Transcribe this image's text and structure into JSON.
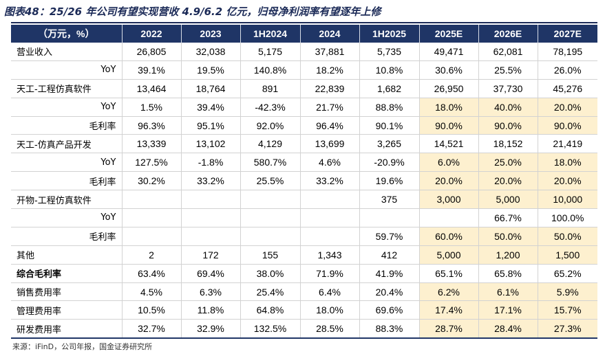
{
  "title": "图表48：25/26 年公司有望实现营收 4.9/6.2 亿元，归母净利润率有望逐年上修",
  "source": "来源：iFinD，公司年报，国金证券研究所",
  "highlight_color": "#fdf0cf",
  "header_color": "#1f3566",
  "columns": [
    "（万元，%）",
    "2022",
    "2023",
    "1H2024",
    "2024",
    "1H2025",
    "2025E",
    "2026E",
    "2027E"
  ],
  "rows": [
    {
      "label": "营业收入",
      "values": [
        "26,805",
        "32,038",
        "5,175",
        "37,881",
        "5,735",
        "49,471",
        "62,081",
        "78,195"
      ],
      "highlight": false
    },
    {
      "label": "YoY",
      "values": [
        "39.1%",
        "19.5%",
        "140.8%",
        "18.2%",
        "10.8%",
        "30.6%",
        "25.5%",
        "26.0%"
      ],
      "highlight": false
    },
    {
      "label": "天工-工程仿真软件",
      "values": [
        "13,464",
        "18,764",
        "891",
        "22,839",
        "1,682",
        "26,950",
        "37,730",
        "45,276"
      ],
      "highlight": false
    },
    {
      "label": "YoY",
      "values": [
        "1.5%",
        "39.4%",
        "-42.3%",
        "21.7%",
        "88.8%",
        "18.0%",
        "40.0%",
        "20.0%"
      ],
      "highlight": true
    },
    {
      "label": "毛利率",
      "values": [
        "96.3%",
        "95.1%",
        "92.0%",
        "96.4%",
        "90.1%",
        "90.0%",
        "90.0%",
        "90.0%"
      ],
      "highlight": true
    },
    {
      "label": "天工-仿真产品开发",
      "values": [
        "13,339",
        "13,102",
        "4,129",
        "13,699",
        "3,265",
        "14,521",
        "18,152",
        "21,419"
      ],
      "highlight": false
    },
    {
      "label": "YoY",
      "values": [
        "127.5%",
        "-1.8%",
        "580.7%",
        "4.6%",
        "-20.9%",
        "6.0%",
        "25.0%",
        "18.0%"
      ],
      "highlight": true
    },
    {
      "label": "毛利率",
      "values": [
        "30.2%",
        "33.2%",
        "25.5%",
        "33.2%",
        "19.6%",
        "20.0%",
        "20.0%",
        "20.0%"
      ],
      "highlight": true
    },
    {
      "label": "开物-工程仿真软件",
      "values": [
        "",
        "",
        "",
        "",
        "375",
        "3,000",
        "5,000",
        "10,000"
      ],
      "highlight": true
    },
    {
      "label": "YoY",
      "values": [
        "",
        "",
        "",
        "",
        "",
        "",
        "66.7%",
        "100.0%"
      ],
      "highlight": false
    },
    {
      "label": "毛利率",
      "values": [
        "",
        "",
        "",
        "",
        "59.7%",
        "60.0%",
        "50.0%",
        "50.0%"
      ],
      "highlight": true
    },
    {
      "label": "其他",
      "values": [
        "2",
        "172",
        "155",
        "1,343",
        "412",
        "5,000",
        "1,200",
        "1,500"
      ],
      "highlight": true
    },
    {
      "label": "综合毛利率",
      "values": [
        "63.4%",
        "69.4%",
        "38.0%",
        "71.9%",
        "41.9%",
        "65.1%",
        "65.8%",
        "65.2%"
      ],
      "highlight": false
    },
    {
      "label": "销售费用率",
      "values": [
        "4.5%",
        "6.3%",
        "25.4%",
        "6.4%",
        "20.4%",
        "6.2%",
        "6.1%",
        "5.9%"
      ],
      "highlight": true
    },
    {
      "label": "管理费用率",
      "values": [
        "10.5%",
        "11.8%",
        "64.8%",
        "18.0%",
        "69.6%",
        "17.4%",
        "17.1%",
        "15.7%"
      ],
      "highlight": true
    },
    {
      "label": "研发费用率",
      "values": [
        "32.7%",
        "32.9%",
        "132.5%",
        "28.5%",
        "88.3%",
        "28.7%",
        "28.4%",
        "27.3%"
      ],
      "highlight": true
    }
  ]
}
